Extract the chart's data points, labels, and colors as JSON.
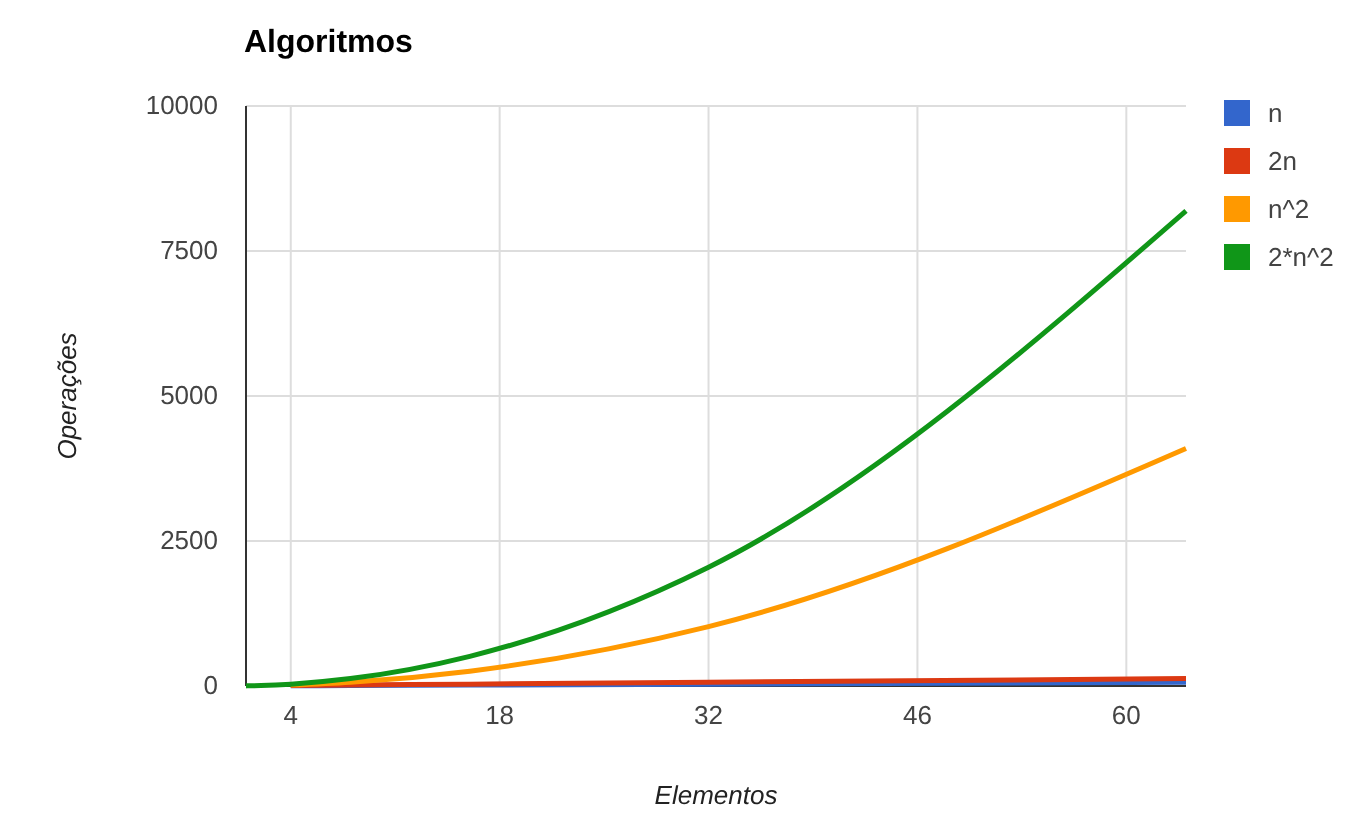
{
  "chart_data": {
    "type": "line",
    "title": "Algoritmos",
    "xlabel": "Elementos",
    "ylabel": "Operações",
    "x": [
      1,
      2,
      4,
      8,
      16,
      32,
      64
    ],
    "series": [
      {
        "name": "n",
        "color": "#3366cc",
        "values": [
          null,
          null,
          4,
          8,
          16,
          32,
          64
        ]
      },
      {
        "name": "2n",
        "color": "#dc3912",
        "values": [
          null,
          null,
          8,
          16,
          32,
          64,
          128
        ]
      },
      {
        "name": "n^2",
        "color": "#ff9900",
        "values": [
          null,
          null,
          16,
          64,
          256,
          1024,
          4096
        ]
      },
      {
        "name": "2*n^2",
        "color": "#109618",
        "values": [
          2,
          8,
          32,
          128,
          512,
          2048,
          8192
        ]
      }
    ],
    "xlim": [
      1,
      64
    ],
    "xticks": [
      4,
      18,
      32,
      46,
      60
    ],
    "ylim": [
      0,
      10000
    ],
    "yticks": [
      0,
      2500,
      5000,
      7500,
      10000
    ],
    "grid": true,
    "legend": "right",
    "marker": "none",
    "line_style": "solid"
  }
}
